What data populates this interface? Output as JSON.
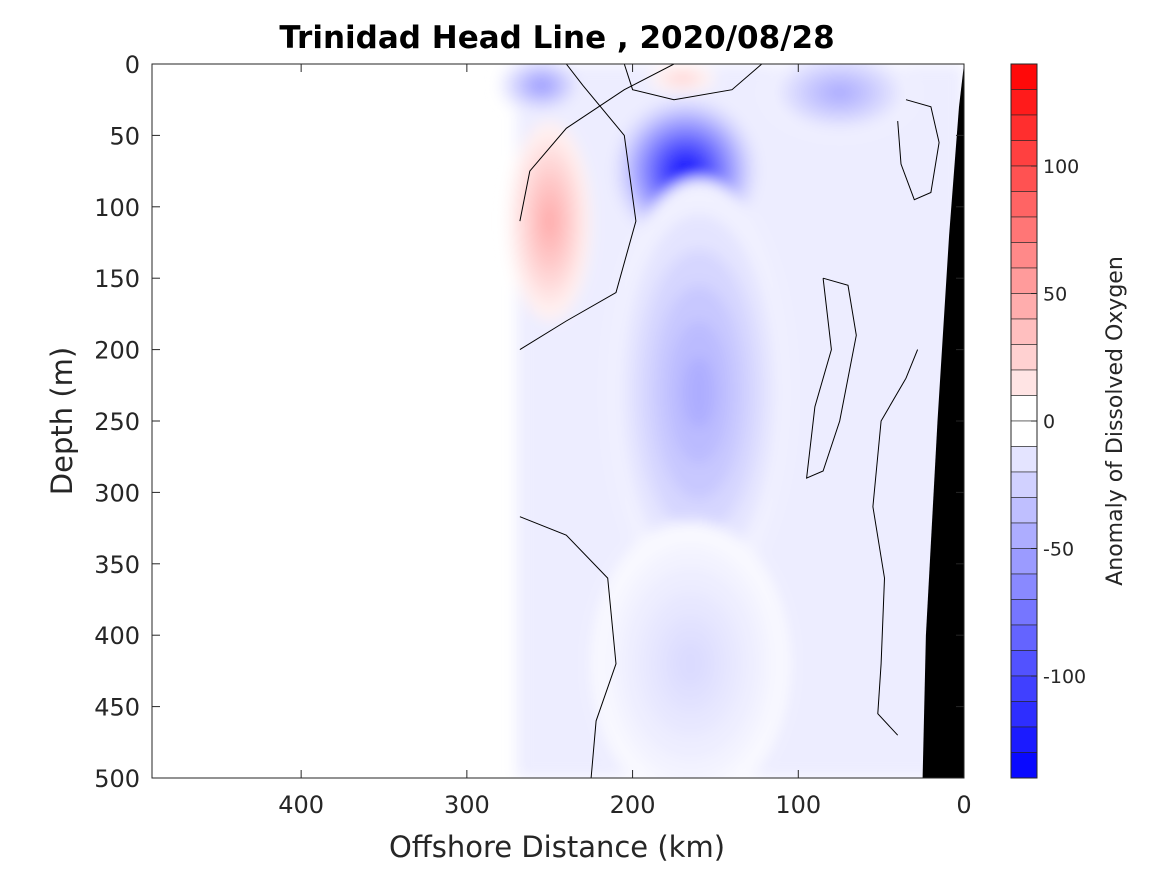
{
  "chart_data": {
    "type": "heatmap",
    "title": "Trinidad Head Line , 2020/08/28",
    "xlabel": "Offshore Distance (km)",
    "ylabel": "Depth (m)",
    "xlim": [
      490,
      0
    ],
    "ylim": [
      0,
      500
    ],
    "x_ticks": [
      400,
      300,
      200,
      100,
      0
    ],
    "y_ticks": [
      0,
      50,
      100,
      150,
      200,
      250,
      300,
      350,
      400,
      450,
      500
    ],
    "colorbar": {
      "label": "Anomaly of Dissolved Oxygen",
      "range": [
        -140,
        140
      ],
      "level_step": 10,
      "ticks": [
        100,
        50,
        0,
        -50,
        -100
      ],
      "high_color": "#ff0000",
      "low_color": "#0000ff",
      "mid_color": "#ffffff"
    },
    "features": [
      {
        "name": "low-oxygen core",
        "x": 168,
        "y": 75,
        "value": -130,
        "rx": 42,
        "ry": 50
      },
      {
        "name": "low-oxygen tongue",
        "x": 160,
        "y": 230,
        "value": -45,
        "rx": 55,
        "ry": 150
      },
      {
        "name": "deep low-oxygen",
        "x": 165,
        "y": 420,
        "value": -20,
        "rx": 60,
        "ry": 100
      },
      {
        "name": "offshore surface low",
        "x": 255,
        "y": 15,
        "value": -55,
        "rx": 25,
        "ry": 20
      },
      {
        "name": "nearshore surface low",
        "x": 75,
        "y": 20,
        "value": -45,
        "rx": 45,
        "ry": 30
      },
      {
        "name": "high-oxygen band",
        "x": 250,
        "y": 110,
        "value": 45,
        "rx": 25,
        "ry": 70
      },
      {
        "name": "surface high",
        "x": 170,
        "y": 10,
        "value": 25,
        "rx": 20,
        "ry": 10
      }
    ],
    "data_extent_km": [
      270,
      0
    ],
    "bathymetry_color": "#000000"
  }
}
